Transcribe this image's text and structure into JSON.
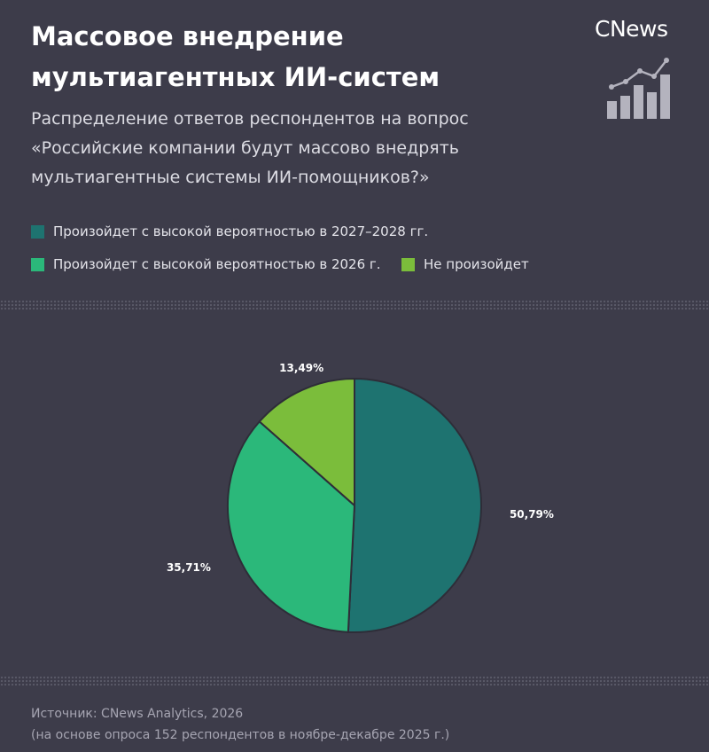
{
  "header": {
    "title_line1": "Массовое внедрение",
    "title_line2": "мультиагентных ИИ-систем",
    "subtitle_line1": "Распределение ответов респондентов на вопрос",
    "subtitle_line2": "«Российские компании будут массово внедрять",
    "subtitle_line3": "мультиагентные системы ИИ-помощников?»",
    "logo_text": "CNews",
    "logo_icon": "bar-chart-trend-icon"
  },
  "legend": [
    {
      "label": "Произойдет с высокой вероятностью в 2027–2028 гг.",
      "color": "#1e7370"
    },
    {
      "label": "Произойдет с высокой вероятностью в 2026 г.",
      "color": "#2bb87a"
    },
    {
      "label": "Не произойдет",
      "color": "#7bbd3b"
    }
  ],
  "chart_data": {
    "type": "pie",
    "slices": [
      {
        "name": "Произойдет с высокой вероятностью в 2027–2028 гг.",
        "value": 50.79,
        "label": "50,79%",
        "color": "#1e7370"
      },
      {
        "name": "Произойдет с высокой вероятностью в 2026 г.",
        "value": 35.71,
        "label": "35,71%",
        "color": "#2bb87a"
      },
      {
        "name": "Не произойдет",
        "value": 13.49,
        "label": "13,49%",
        "color": "#7bbd3b"
      }
    ]
  },
  "footer": {
    "source_line1": "Источник: CNews Analytics, 2026",
    "source_line2": "(на основе опроса 152 респондентов в ноябре-декабре 2025 г.)"
  }
}
